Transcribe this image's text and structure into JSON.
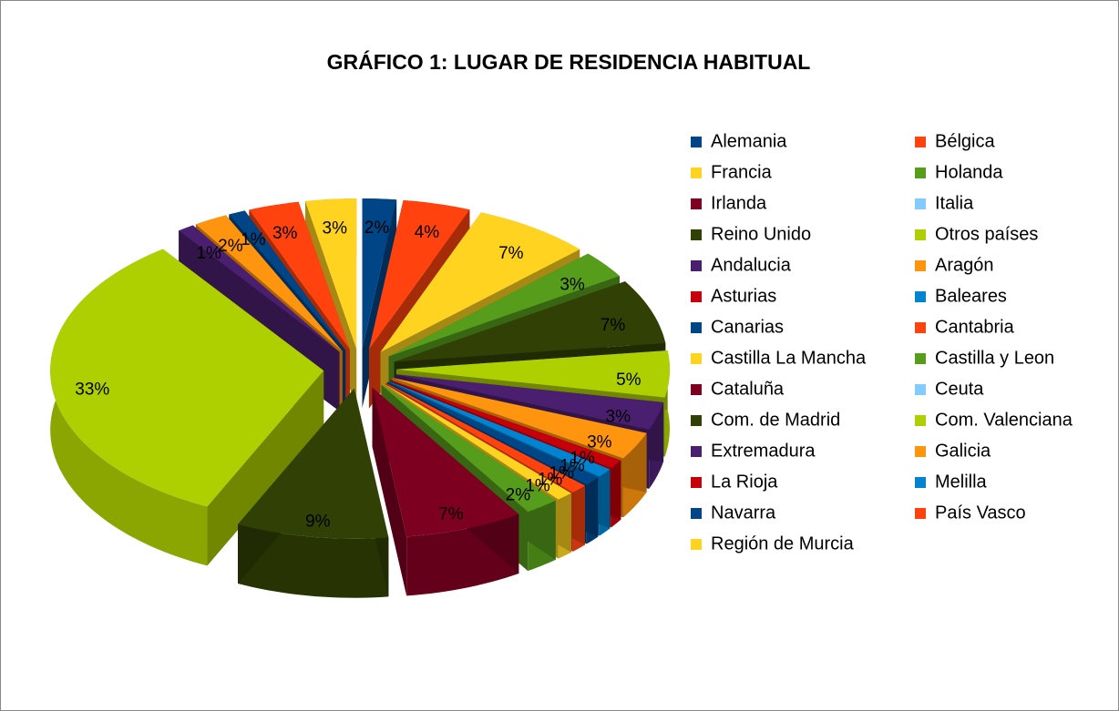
{
  "chart_data": {
    "type": "pie3d",
    "title": "GRÁFICO 1: LUGAR DE RESIDENCIA HABITUAL",
    "categories": [
      "Alemania",
      "Bélgica",
      "Francia",
      "Holanda",
      "Irlanda",
      "Italia",
      "Reino Unido",
      "Otros países",
      "Andalucia",
      "Aragón",
      "Asturias",
      "Baleares",
      "Canarias",
      "Cantabria",
      "Castilla La Mancha",
      "Castilla y Leon",
      "Cataluña",
      "Ceuta",
      "Com. de Madrid",
      "Com. Valenciana",
      "Extremadura",
      "Galicia",
      "La Rioja",
      "Melilla",
      "Navarra",
      "País Vasco",
      "Región de Murcia"
    ],
    "values": [
      2,
      4,
      7,
      3,
      0,
      0,
      7,
      5,
      3,
      3,
      1,
      1,
      1,
      1,
      1,
      2,
      7,
      0,
      9,
      33,
      1,
      2,
      0,
      0,
      1,
      3,
      3
    ],
    "value_labels": [
      "2%",
      "4%",
      "7%",
      "3%",
      null,
      null,
      "7%",
      "5%",
      "3%",
      "3%",
      "1%",
      "1%",
      "1%",
      "1%",
      "1%",
      "2%",
      "7%",
      null,
      "9%",
      "33%",
      "1%",
      "2%",
      null,
      null,
      "1%",
      "3%",
      "3%"
    ],
    "colors": [
      "#004586",
      "#ff420e",
      "#ffd320",
      "#579d1c",
      "#7e0021",
      "#83caff",
      "#314004",
      "#aecf00",
      "#4b1f6f",
      "#ff950e",
      "#c5000b",
      "#0084d1",
      "#004586",
      "#ff420e",
      "#ffd320",
      "#579d1c",
      "#7e0021",
      "#83caff",
      "#314004",
      "#aecf00",
      "#4b1f6f",
      "#ff950e",
      "#c5000b",
      "#0084d1",
      "#004586",
      "#ff420e",
      "#ffd320"
    ],
    "legend": "right"
  }
}
